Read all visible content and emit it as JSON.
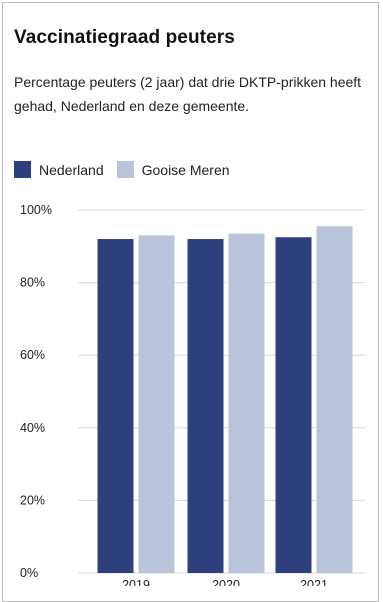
{
  "chart_data": {
    "type": "bar",
    "title": "Vaccinatiegraad peuters",
    "subtitle": "Percentage peuters (2 jaar) dat drie DKTP-prikken heeft gehad, Nederland en deze gemeente.",
    "categories": [
      "2019",
      "2020",
      "2021"
    ],
    "series": [
      {
        "name": "Nederland",
        "values": [
          92,
          92,
          92.5
        ],
        "color": "#2d3f7c"
      },
      {
        "name": "Gooise Meren",
        "values": [
          93,
          93.5,
          95.5
        ],
        "color": "#b9c3da"
      }
    ],
    "ylim": [
      0,
      100
    ],
    "yticks": [
      0,
      20,
      40,
      60,
      80,
      100
    ],
    "ytick_labels": [
      "0%",
      "20%",
      "40%",
      "60%",
      "80%",
      "100%"
    ],
    "xlabel": "",
    "ylabel": "",
    "grid": true,
    "legend_position": "top-left"
  }
}
